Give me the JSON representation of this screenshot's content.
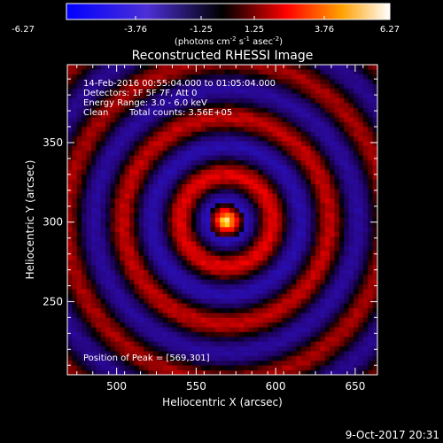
{
  "chart_data": {
    "type": "heatmap",
    "title": "Reconstructed RHESSI Image",
    "xlabel": "Heliocentric X (arcsec)",
    "ylabel": "Heliocentric Y (arcsec)",
    "xlim": [
      469,
      664
    ],
    "ylim": [
      204,
      399
    ],
    "xticks": [
      500,
      550,
      600,
      650
    ],
    "yticks": [
      250,
      300,
      350
    ],
    "colorbar": {
      "ticks": [
        "-6.27",
        "-3.76",
        "-1.25",
        "1.25",
        "3.76",
        "6.27"
      ],
      "unit_base": "(photons cm",
      "unit_exp1": "-2",
      "unit_mid1": " s",
      "unit_exp2": "-1",
      "unit_mid2": " asec",
      "unit_exp3": "-2",
      "unit_end": ")",
      "range": [
        -6.27,
        6.27
      ]
    },
    "annotations": {
      "time": "14-Feb-2016 00:55:04.000 to 01:05:04.000",
      "detectors": "Detectors: 1F 5F 7F, Att 0",
      "energy": "Energy Range: 3.0 - 6.0 keV",
      "method": "Clean",
      "counts": "Total counts: 3.56E+05",
      "peak": "Position of Peak = [569,301]"
    },
    "peak": {
      "x": 569,
      "y": 301
    },
    "footer_date": "9-Oct-2017 20:31"
  }
}
